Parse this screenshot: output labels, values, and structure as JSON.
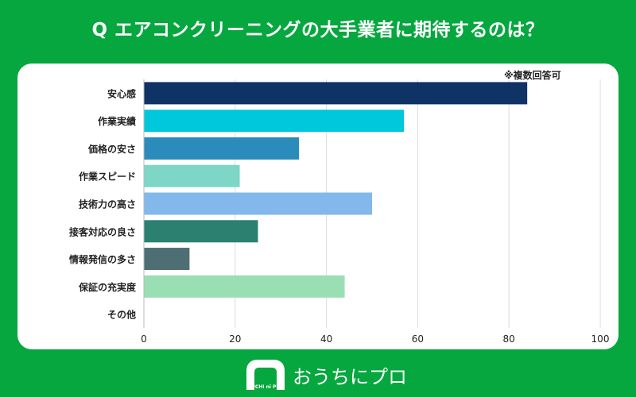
{
  "title": "Q エアコンクリーニングの大手業者に期待するのは？",
  "note": "※複数回答可",
  "chart_data": {
    "type": "bar",
    "orientation": "horizontal",
    "categories": [
      "安心感",
      "作業実績",
      "価格の安さ",
      "作業スピード",
      "技術力の高さ",
      "接客対応の良さ",
      "情報発信の多さ",
      "保証の充実度",
      "その他"
    ],
    "values": [
      84,
      57,
      34,
      21,
      50,
      25,
      10,
      44,
      0
    ],
    "colors": [
      "#0f3364",
      "#00c8dc",
      "#2b8bbb",
      "#7ed6c6",
      "#82b8ea",
      "#2b8070",
      "#4d6f73",
      "#9adfb3",
      "#cccccc"
    ],
    "xlim": [
      0,
      100
    ],
    "xticks": [
      0,
      20,
      40,
      60,
      80,
      100
    ],
    "grid": true
  },
  "logo": {
    "text": "おうちにプロ",
    "mark": "OUCHI ni PRO"
  }
}
